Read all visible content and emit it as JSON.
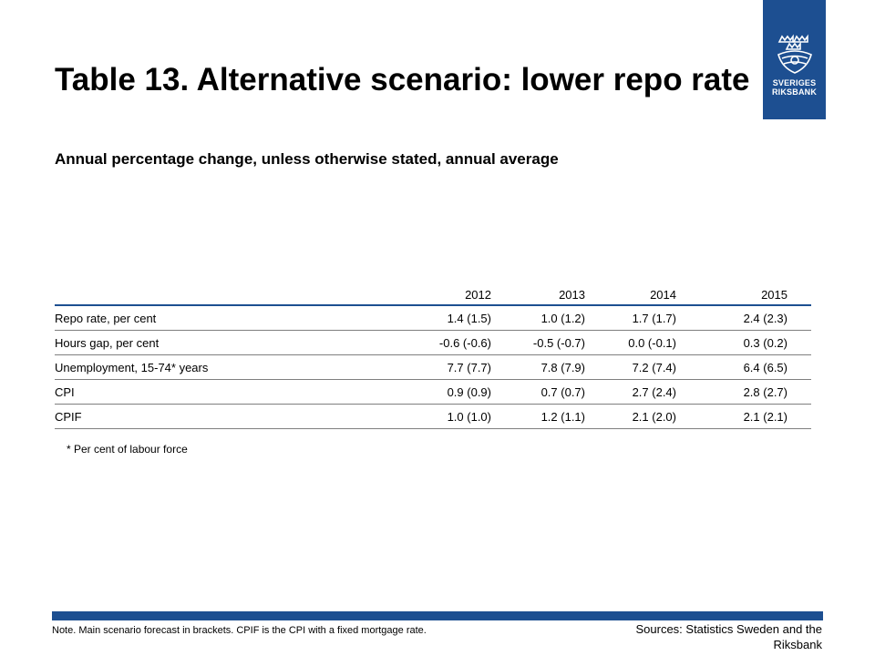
{
  "logo": {
    "line1": "SVERIGES",
    "line2": "RIKSBANK",
    "icon": "riksbank-crown-emblem-icon"
  },
  "title": "Table 13. Alternative scenario: lower repo rate",
  "subtitle": "Annual percentage change, unless otherwise stated, annual average",
  "table": {
    "corner": "",
    "years": [
      "2012",
      "2013",
      "2014",
      "2015"
    ],
    "rows": [
      {
        "label": "Repo rate, per cent",
        "values": [
          "1.4 (1.5)",
          "1.0 (1.2)",
          "1.7 (1.7)",
          "2.4 (2.3)"
        ]
      },
      {
        "label": "Hours gap, per cent",
        "values": [
          "-0.6 (-0.6)",
          "-0.5 (-0.7)",
          "0.0 (-0.1)",
          "0.3 (0.2)"
        ]
      },
      {
        "label": "Unemployment, 15-74* years",
        "values": [
          "7.7 (7.7)",
          "7.8 (7.9)",
          "7.2 (7.4)",
          "6.4 (6.5)"
        ]
      },
      {
        "label": "CPI",
        "values": [
          "0.9 (0.9)",
          "0.7 (0.7)",
          "2.7 (2.4)",
          "2.8 (2.7)"
        ]
      },
      {
        "label": "CPIF",
        "values": [
          "1.0 (1.0)",
          "1.2 (1.1)",
          "2.1 (2.0)",
          "2.1 (2.1)"
        ]
      }
    ]
  },
  "footnote": "* Per cent of labour force",
  "note": "Note. Main scenario forecast in brackets. CPIF is the CPI with a fixed mortgage rate.",
  "sources": "Sources: Statistics Sweden and the Riksbank",
  "colors": {
    "brand_blue": "#1d4f91"
  }
}
